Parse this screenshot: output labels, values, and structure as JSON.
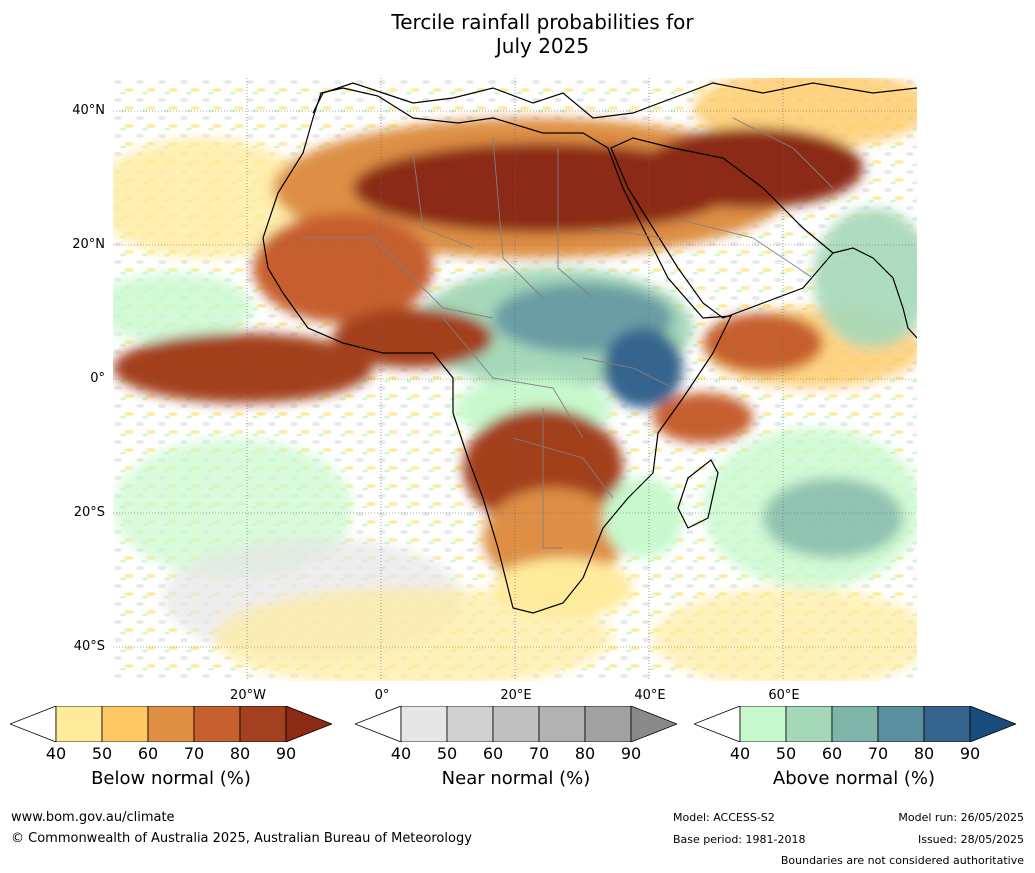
{
  "title": {
    "line1": "Tercile rainfall probabilities for",
    "line2": "July 2025"
  },
  "map": {
    "lat_labels": [
      "40°N",
      "20°N",
      "0°",
      "20°S",
      "40°S"
    ],
    "lon_labels": [
      "20°W",
      "0°",
      "20°E",
      "40°E",
      "60°E"
    ],
    "colors": {
      "below": [
        "#ffeb9c",
        "#fec965",
        "#de8f44",
        "#c65f2e",
        "#a3401f",
        "#8b2b14"
      ],
      "near": [
        "#e6e6e6",
        "#d1d1d1",
        "#c0c0c0",
        "#b2b2b2",
        "#a1a1a1",
        "#8a8a8a"
      ],
      "above": [
        "#c7f9cd",
        "#a5d8b9",
        "#7fb5a8",
        "#5b8f9f",
        "#35658f",
        "#1b4c7e"
      ],
      "coast": "#000000",
      "borders": "#808080"
    }
  },
  "colorbars": [
    {
      "label": "Below normal (%)",
      "ticks": [
        "40",
        "50",
        "60",
        "70",
        "80",
        "90"
      ]
    },
    {
      "label": "Near normal (%)",
      "ticks": [
        "40",
        "50",
        "60",
        "70",
        "80",
        "90"
      ]
    },
    {
      "label": "Above normal (%)",
      "ticks": [
        "40",
        "50",
        "60",
        "70",
        "80",
        "90"
      ]
    }
  ],
  "footer": {
    "website": "www.bom.gov.au/climate",
    "copyright": "© Commonwealth of Australia 2025, Australian Bureau of Meteorology",
    "model": "Model: ACCESS-S2",
    "base_period": "Base period: 1981-2018",
    "model_run": "Model run: 26/05/2025",
    "issued": "Issued: 28/05/2025",
    "disclaimer": "Boundaries are not considered authoritative"
  }
}
